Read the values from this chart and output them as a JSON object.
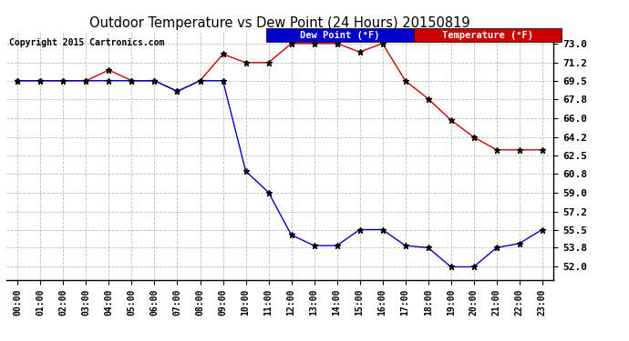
{
  "title": "Outdoor Temperature vs Dew Point (24 Hours) 20150819",
  "copyright": "Copyright 2015 Cartronics.com",
  "background_color": "#ffffff",
  "plot_bg_color": "#ffffff",
  "grid_color": "#bbbbbb",
  "hours": [
    0,
    1,
    2,
    3,
    4,
    5,
    6,
    7,
    8,
    9,
    10,
    11,
    12,
    13,
    14,
    15,
    16,
    17,
    18,
    19,
    20,
    21,
    22,
    23
  ],
  "temperature": [
    69.5,
    69.5,
    69.5,
    69.5,
    70.5,
    69.5,
    69.5,
    68.5,
    69.5,
    72.0,
    71.2,
    71.2,
    73.0,
    73.0,
    73.0,
    72.2,
    73.0,
    69.5,
    67.8,
    65.8,
    64.2,
    63.0,
    63.0,
    63.0
  ],
  "dew_point": [
    69.5,
    69.5,
    69.5,
    69.5,
    69.5,
    69.5,
    69.5,
    68.5,
    69.5,
    69.5,
    61.0,
    59.0,
    55.0,
    54.0,
    54.0,
    55.5,
    55.5,
    54.0,
    53.8,
    52.0,
    52.0,
    53.8,
    54.2,
    55.5
  ],
  "temp_color": "#cc0000",
  "dew_color": "#0000cc",
  "yticks": [
    52.0,
    53.8,
    55.5,
    57.2,
    59.0,
    60.8,
    62.5,
    64.2,
    66.0,
    67.8,
    69.5,
    71.2,
    73.0
  ],
  "ylim": [
    50.8,
    74.2
  ],
  "legend_dew_label": "Dew Point (°F)",
  "legend_temp_label": "Temperature (°F)"
}
